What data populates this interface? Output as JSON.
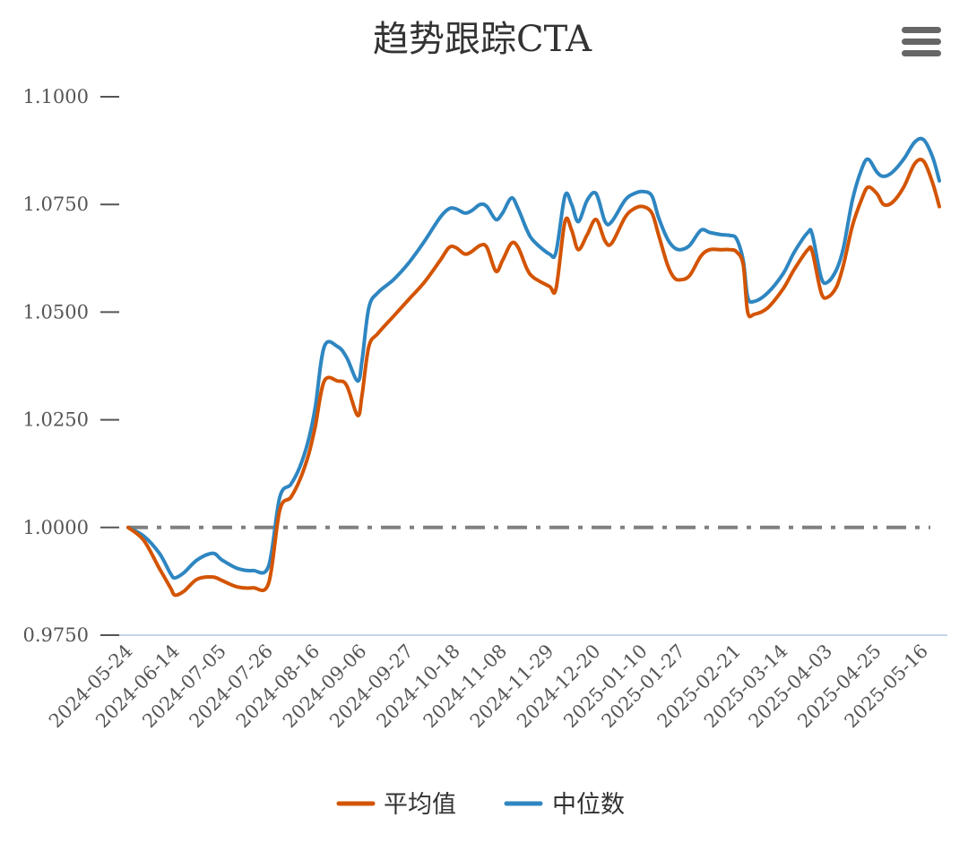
{
  "chart_data": {
    "type": "line",
    "title": "趋势跟踪CTA",
    "y_ticks": [
      "0.9750",
      "1.0000",
      "1.0250",
      "1.0500",
      "1.0750",
      "1.1000"
    ],
    "ylim": [
      0.975,
      1.1
    ],
    "x_tick_labels": [
      "2024-05-24",
      "2024-06-14",
      "2024-07-05",
      "2024-07-26",
      "2024-08-16",
      "2024-09-06",
      "2024-09-27",
      "2024-10-18",
      "2024-11-08",
      "2024-11-29",
      "2024-12-20",
      "2025-01-10",
      "2025-01-27",
      "2025-02-21",
      "2025-03-14",
      "2025-04-03",
      "2025-04-25",
      "2025-05-16"
    ],
    "xlim": [
      "2024-05-24",
      "2025-05-23"
    ],
    "reference_line": 1.0,
    "legend_position": "bottom",
    "grid": false,
    "series": [
      {
        "name": "平均值",
        "color": "#d35400",
        "points": [
          [
            "2024-05-24",
            1.0
          ],
          [
            "2024-05-31",
            0.997
          ],
          [
            "2024-06-07",
            0.9905
          ],
          [
            "2024-06-12",
            0.986
          ],
          [
            "2024-06-14",
            0.9843
          ],
          [
            "2024-06-18",
            0.9852
          ],
          [
            "2024-06-24",
            0.988
          ],
          [
            "2024-07-01",
            0.9885
          ],
          [
            "2024-07-05",
            0.9877
          ],
          [
            "2024-07-12",
            0.9862
          ],
          [
            "2024-07-19",
            0.986
          ],
          [
            "2024-07-26",
            0.987
          ],
          [
            "2024-07-31",
            1.004
          ],
          [
            "2024-08-05",
            1.007
          ],
          [
            "2024-08-09",
            1.011
          ],
          [
            "2024-08-13",
            1.017
          ],
          [
            "2024-08-16",
            1.0235
          ],
          [
            "2024-08-20",
            1.034
          ],
          [
            "2024-08-26",
            1.034
          ],
          [
            "2024-08-30",
            1.033
          ],
          [
            "2024-09-04",
            1.026
          ],
          [
            "2024-09-06",
            1.031
          ],
          [
            "2024-09-09",
            1.042
          ],
          [
            "2024-09-13",
            1.045
          ],
          [
            "2024-09-20",
            1.049
          ],
          [
            "2024-09-27",
            1.053
          ],
          [
            "2024-10-04",
            1.057
          ],
          [
            "2024-10-11",
            1.062
          ],
          [
            "2024-10-15",
            1.065
          ],
          [
            "2024-10-18",
            1.065
          ],
          [
            "2024-10-22",
            1.0635
          ],
          [
            "2024-10-25",
            1.064
          ],
          [
            "2024-10-29",
            1.0655
          ],
          [
            "2024-11-01",
            1.065
          ],
          [
            "2024-11-05",
            1.0595
          ],
          [
            "2024-11-08",
            1.062
          ],
          [
            "2024-11-12",
            1.066
          ],
          [
            "2024-11-15",
            1.065
          ],
          [
            "2024-11-19",
            1.06
          ],
          [
            "2024-11-22",
            1.058
          ],
          [
            "2024-11-29",
            1.056
          ],
          [
            "2024-12-02",
            1.0555
          ],
          [
            "2024-12-06",
            1.071
          ],
          [
            "2024-12-09",
            1.069
          ],
          [
            "2024-12-12",
            1.0645
          ],
          [
            "2024-12-16",
            1.068
          ],
          [
            "2024-12-20",
            1.0715
          ],
          [
            "2024-12-24",
            1.0665
          ],
          [
            "2024-12-27",
            1.066
          ],
          [
            "2025-01-02",
            1.072
          ],
          [
            "2025-01-06",
            1.074
          ],
          [
            "2025-01-10",
            1.0745
          ],
          [
            "2025-01-14",
            1.073
          ],
          [
            "2025-01-17",
            1.068
          ],
          [
            "2025-01-21",
            1.061
          ],
          [
            "2025-01-24",
            1.058
          ],
          [
            "2025-01-27",
            1.0575
          ],
          [
            "2025-01-31",
            1.0585
          ],
          [
            "2025-02-05",
            1.063
          ],
          [
            "2025-02-09",
            1.0645
          ],
          [
            "2025-02-14",
            1.0645
          ],
          [
            "2025-02-18",
            1.0645
          ],
          [
            "2025-02-21",
            1.064
          ],
          [
            "2025-02-24",
            1.061
          ],
          [
            "2025-02-26",
            1.05
          ],
          [
            "2025-03-01",
            1.0495
          ],
          [
            "2025-03-07",
            1.051
          ],
          [
            "2025-03-14",
            1.0555
          ],
          [
            "2025-03-19",
            1.06
          ],
          [
            "2025-03-25",
            1.0645
          ],
          [
            "2025-03-27",
            1.064
          ],
          [
            "2025-03-31",
            1.0545
          ],
          [
            "2025-04-03",
            1.0535
          ],
          [
            "2025-04-07",
            1.056
          ],
          [
            "2025-04-10",
            1.061
          ],
          [
            "2025-04-14",
            1.07
          ],
          [
            "2025-04-18",
            1.076
          ],
          [
            "2025-04-21",
            1.079
          ],
          [
            "2025-04-25",
            1.0775
          ],
          [
            "2025-04-28",
            1.075
          ],
          [
            "2025-05-02",
            1.0755
          ],
          [
            "2025-05-07",
            1.079
          ],
          [
            "2025-05-12",
            1.0845
          ],
          [
            "2025-05-16",
            1.085
          ],
          [
            "2025-05-20",
            1.08
          ],
          [
            "2025-05-23",
            1.0745
          ]
        ]
      },
      {
        "name": "中位数",
        "color": "#2e86c1",
        "points": [
          [
            "2024-05-24",
            1.0
          ],
          [
            "2024-05-31",
            0.998
          ],
          [
            "2024-06-07",
            0.994
          ],
          [
            "2024-06-12",
            0.9893
          ],
          [
            "2024-06-14",
            0.9883
          ],
          [
            "2024-06-18",
            0.9895
          ],
          [
            "2024-06-24",
            0.9925
          ],
          [
            "2024-07-01",
            0.994
          ],
          [
            "2024-07-05",
            0.9925
          ],
          [
            "2024-07-12",
            0.9905
          ],
          [
            "2024-07-19",
            0.99
          ],
          [
            "2024-07-26",
            0.991
          ],
          [
            "2024-07-31",
            1.007
          ],
          [
            "2024-08-05",
            1.01
          ],
          [
            "2024-08-09",
            1.014
          ],
          [
            "2024-08-13",
            1.0205
          ],
          [
            "2024-08-16",
            1.028
          ],
          [
            "2024-08-20",
            1.042
          ],
          [
            "2024-08-26",
            1.042
          ],
          [
            "2024-08-30",
            1.0395
          ],
          [
            "2024-09-04",
            1.034
          ],
          [
            "2024-09-06",
            1.039
          ],
          [
            "2024-09-09",
            1.051
          ],
          [
            "2024-09-13",
            1.0545
          ],
          [
            "2024-09-20",
            1.0575
          ],
          [
            "2024-09-27",
            1.0615
          ],
          [
            "2024-10-04",
            1.0665
          ],
          [
            "2024-10-11",
            1.072
          ],
          [
            "2024-10-15",
            1.074
          ],
          [
            "2024-10-18",
            1.074
          ],
          [
            "2024-10-22",
            1.073
          ],
          [
            "2024-10-25",
            1.0735
          ],
          [
            "2024-10-29",
            1.075
          ],
          [
            "2024-11-01",
            1.0745
          ],
          [
            "2024-11-05",
            1.0715
          ],
          [
            "2024-11-08",
            1.073
          ],
          [
            "2024-11-12",
            1.0765
          ],
          [
            "2024-11-15",
            1.074
          ],
          [
            "2024-11-19",
            1.069
          ],
          [
            "2024-11-22",
            1.0665
          ],
          [
            "2024-11-29",
            1.0635
          ],
          [
            "2024-12-02",
            1.064
          ],
          [
            "2024-12-06",
            1.077
          ],
          [
            "2024-12-09",
            1.075
          ],
          [
            "2024-12-12",
            1.071
          ],
          [
            "2024-12-16",
            1.076
          ],
          [
            "2024-12-20",
            1.0775
          ],
          [
            "2024-12-24",
            1.071
          ],
          [
            "2024-12-27",
            1.071
          ],
          [
            "2025-01-02",
            1.076
          ],
          [
            "2025-01-06",
            1.0775
          ],
          [
            "2025-01-10",
            1.078
          ],
          [
            "2025-01-14",
            1.077
          ],
          [
            "2025-01-17",
            1.072
          ],
          [
            "2025-01-21",
            1.067
          ],
          [
            "2025-01-24",
            1.065
          ],
          [
            "2025-01-27",
            1.0645
          ],
          [
            "2025-01-31",
            1.0655
          ],
          [
            "2025-02-05",
            1.069
          ],
          [
            "2025-02-09",
            1.0685
          ],
          [
            "2025-02-14",
            1.068
          ],
          [
            "2025-02-18",
            1.0678
          ],
          [
            "2025-02-21",
            1.067
          ],
          [
            "2025-02-24",
            1.062
          ],
          [
            "2025-02-26",
            1.0535
          ],
          [
            "2025-03-01",
            1.0525
          ],
          [
            "2025-03-07",
            1.0545
          ],
          [
            "2025-03-14",
            1.059
          ],
          [
            "2025-03-19",
            1.064
          ],
          [
            "2025-03-25",
            1.0685
          ],
          [
            "2025-03-27",
            1.068
          ],
          [
            "2025-03-31",
            1.058
          ],
          [
            "2025-04-03",
            1.057
          ],
          [
            "2025-04-07",
            1.06
          ],
          [
            "2025-04-10",
            1.065
          ],
          [
            "2025-04-14",
            1.076
          ],
          [
            "2025-04-18",
            1.083
          ],
          [
            "2025-04-21",
            1.0855
          ],
          [
            "2025-04-25",
            1.0825
          ],
          [
            "2025-04-28",
            1.0815
          ],
          [
            "2025-05-02",
            1.0825
          ],
          [
            "2025-05-07",
            1.0855
          ],
          [
            "2025-05-12",
            1.0895
          ],
          [
            "2025-05-16",
            1.09
          ],
          [
            "2025-05-20",
            1.086
          ],
          [
            "2025-05-23",
            1.0805
          ]
        ]
      }
    ]
  },
  "icons": {
    "menu": "hamburger-menu-icon"
  }
}
